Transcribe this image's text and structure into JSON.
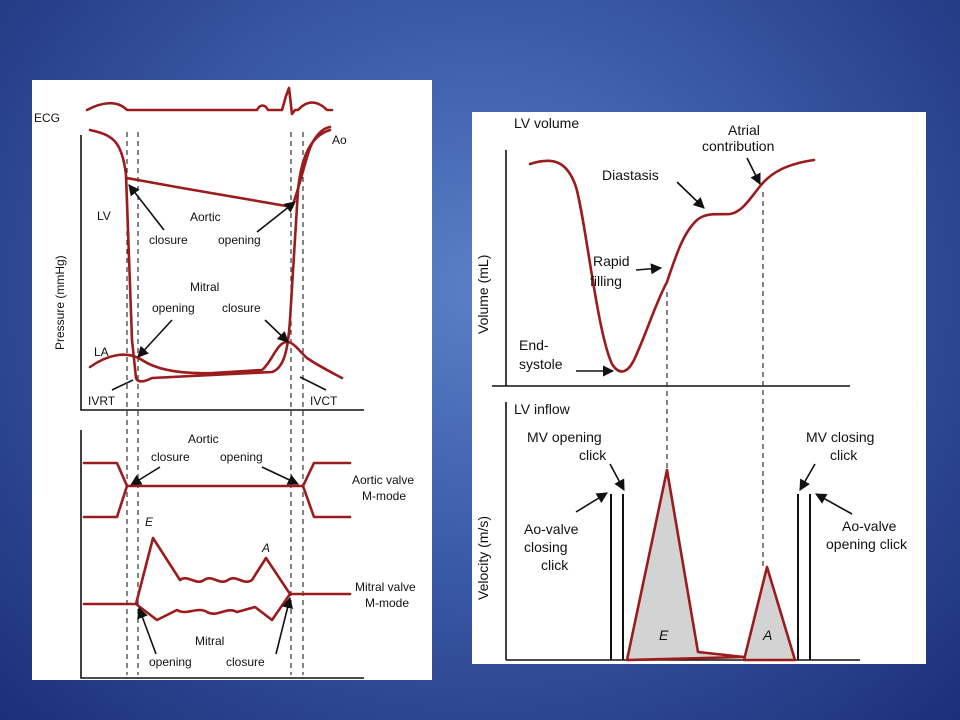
{
  "left": {
    "ecg": "ECG",
    "ao": "Ao",
    "lv": "LV",
    "la": "LA",
    "ylabel": "Pressure (mmHg)",
    "aortic_top": "Aortic",
    "closure_top": "closure",
    "opening_top": "opening",
    "mitral_top": "Mitral",
    "mitral_opening_top": "opening",
    "mitral_closure_top": "closure",
    "ivrt": "IVRT",
    "ivct": "IVCT",
    "aortic_bottom": "Aortic",
    "closure_bottom": "closure",
    "opening_bottom": "opening",
    "aortic_valve_line1": "Aortic valve",
    "aortic_valve_line2": "M-mode",
    "e_label": "E",
    "a_label": "A",
    "mitral_valve_line1": "Mitral valve",
    "mitral_valve_line2": "M-mode",
    "mitral_bottom": "Mitral",
    "opening_bottom2": "opening",
    "closure_bottom2": "closure"
  },
  "right": {
    "lv_volume": "LV volume",
    "atrial_line1": "Atrial",
    "atrial_line2": "contribution",
    "diastasis": "Diastasis",
    "rapid_line1": "Rapid",
    "rapid_line2": "filling",
    "end_line1": "End-",
    "end_line2": "systole",
    "volume_ylabel": "Volume (mL)",
    "lv_inflow": "LV inflow",
    "mv_open_line1": "MV opening",
    "mv_open_line2": "click",
    "mv_close_line1": "MV closing",
    "mv_close_line2": "click",
    "ao_close_line1": "Ao-valve",
    "ao_close_line2": "closing",
    "ao_close_line3": "click",
    "ao_open_line1": "Ao-valve",
    "ao_open_line2": "opening click",
    "velocity_ylabel": "Velocity (m/s)",
    "e_label": "E",
    "a_label": "A"
  },
  "colors": {
    "curve": "#9b1c1c",
    "background": "#3a5aa8",
    "wave_fill": "#d3d3d3"
  }
}
